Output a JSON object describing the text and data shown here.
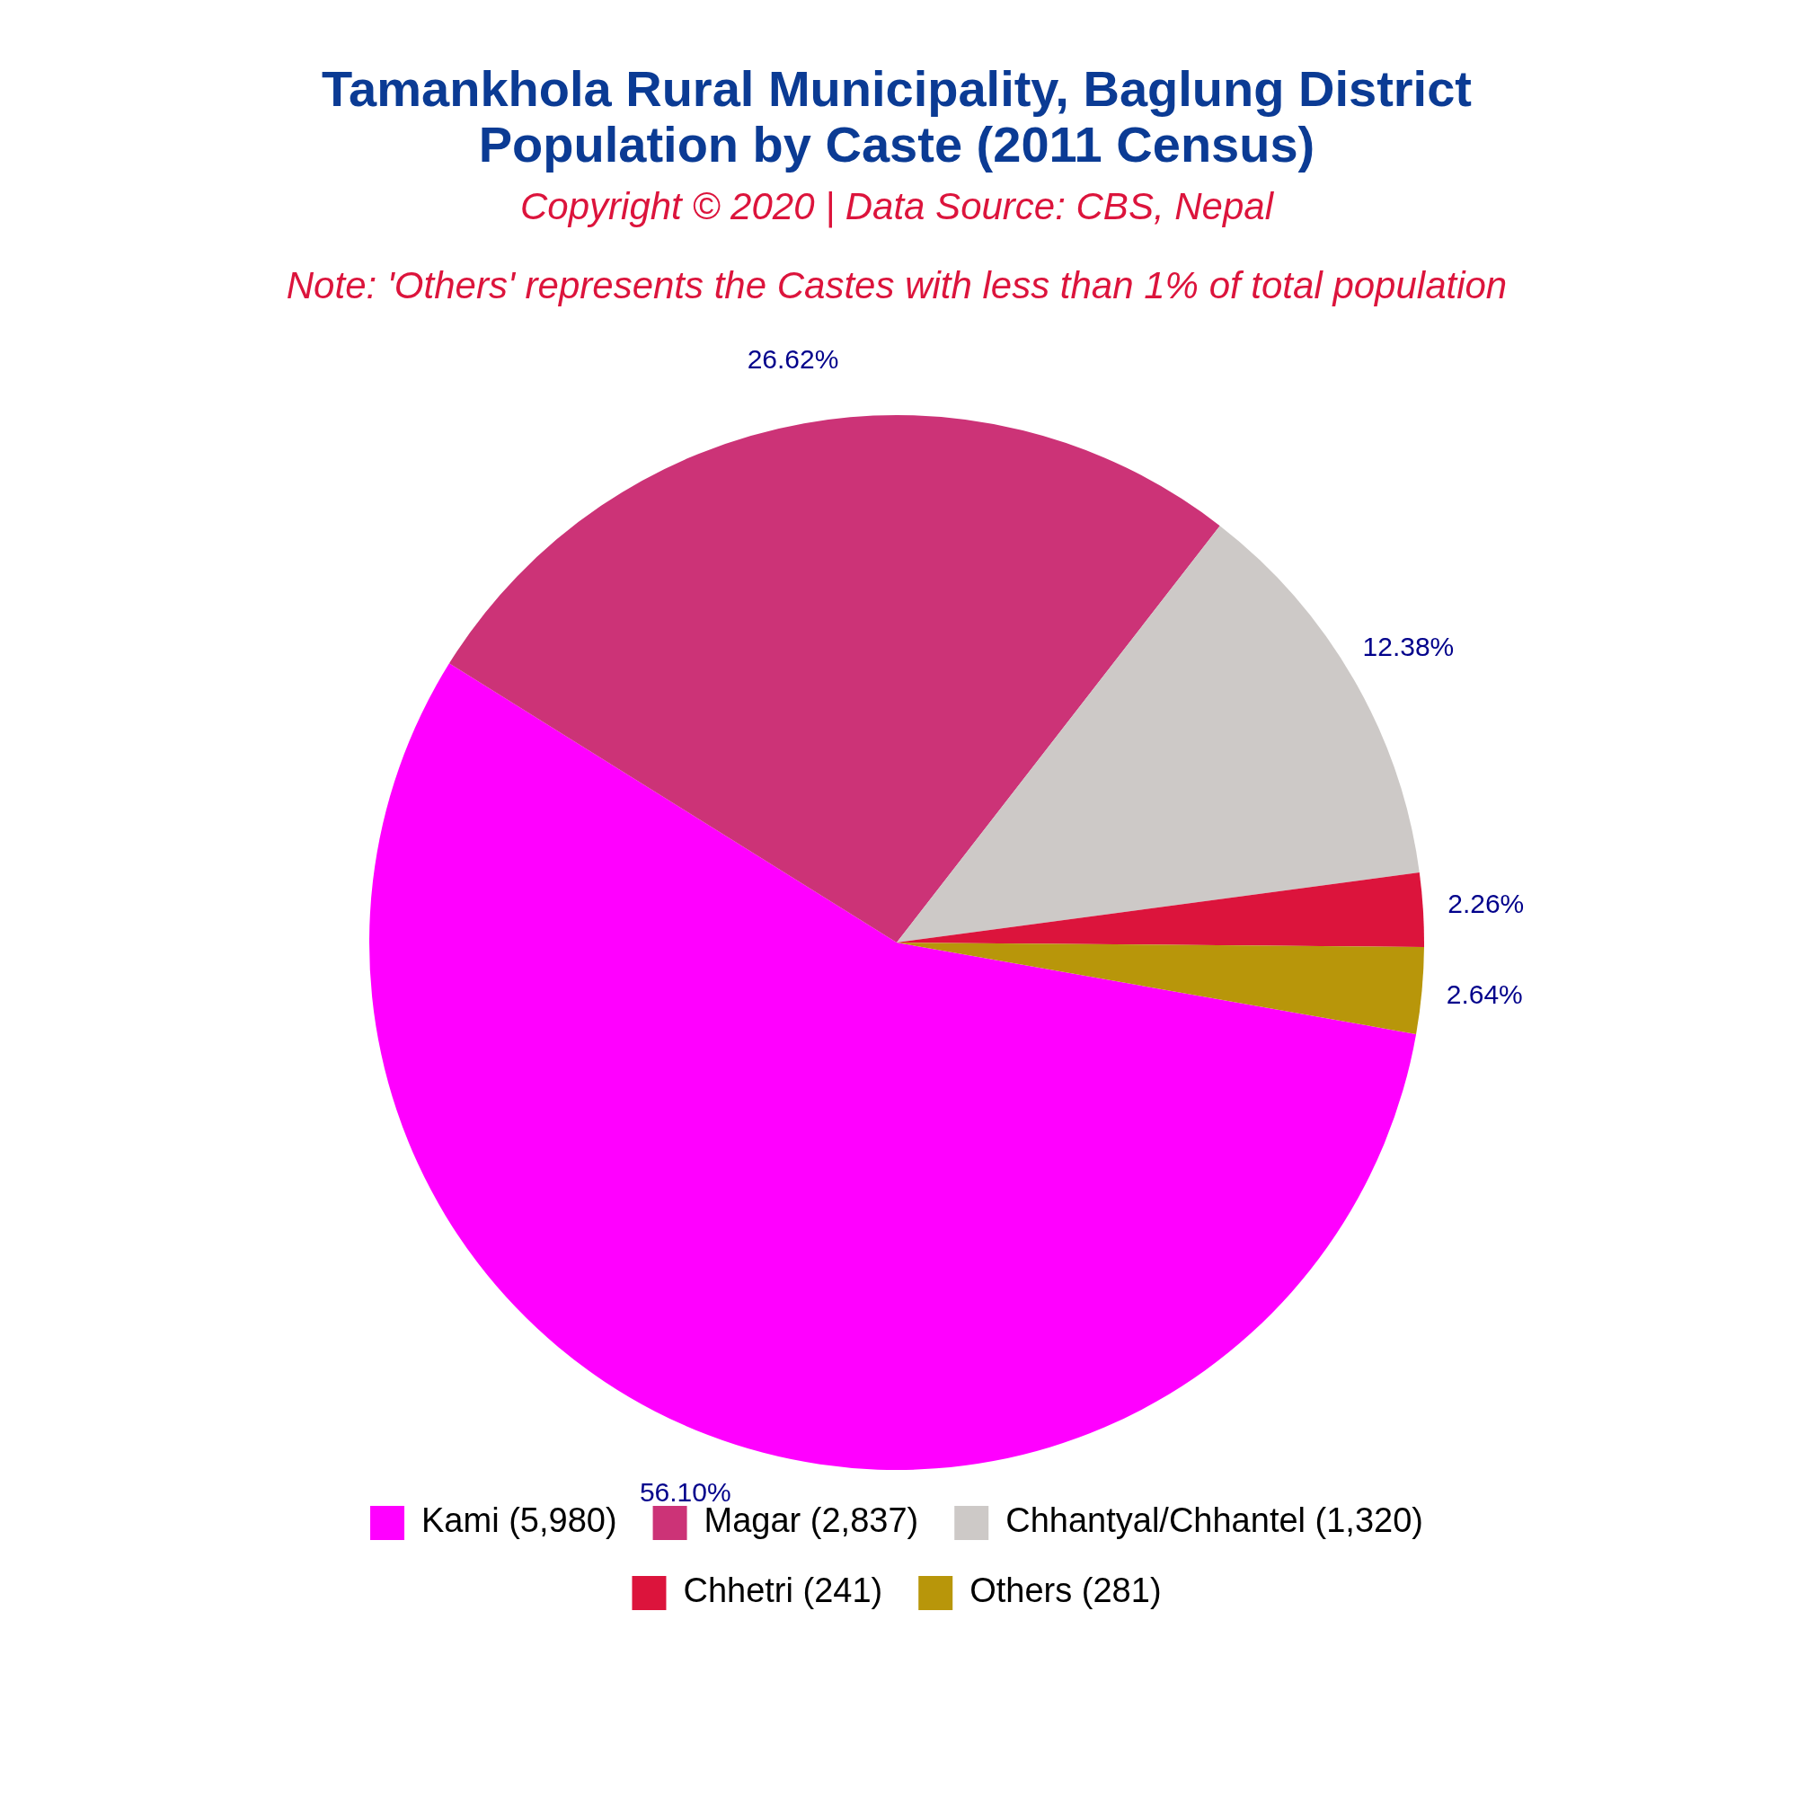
{
  "chart_data": {
    "type": "pie",
    "title": "Tamankhola Rural Municipality, Baglung District\nPopulation by Caste (2011 Census)",
    "subtitle": "Copyright © 2020 | Data Source: CBS, Nepal",
    "annotations": [
      "Note: 'Others' represents the Castes with less than 1% of total population"
    ],
    "categories": [
      "Kami (5,980)",
      "Magar (2,837)",
      "Chhantyal/Chhantel (1,320)",
      "Chhetri (241)",
      "Others (281)"
    ],
    "values": [
      56.1,
      26.62,
      12.38,
      2.26,
      2.64
    ],
    "value_labels": [
      "56.10%",
      "26.62%",
      "12.38%",
      "2.26%",
      "2.64%"
    ],
    "colors": [
      "#ff00ff",
      "#cc3377",
      "#cdc9c7",
      "#dc143c",
      "#b8960a"
    ],
    "legend": "bottom"
  }
}
